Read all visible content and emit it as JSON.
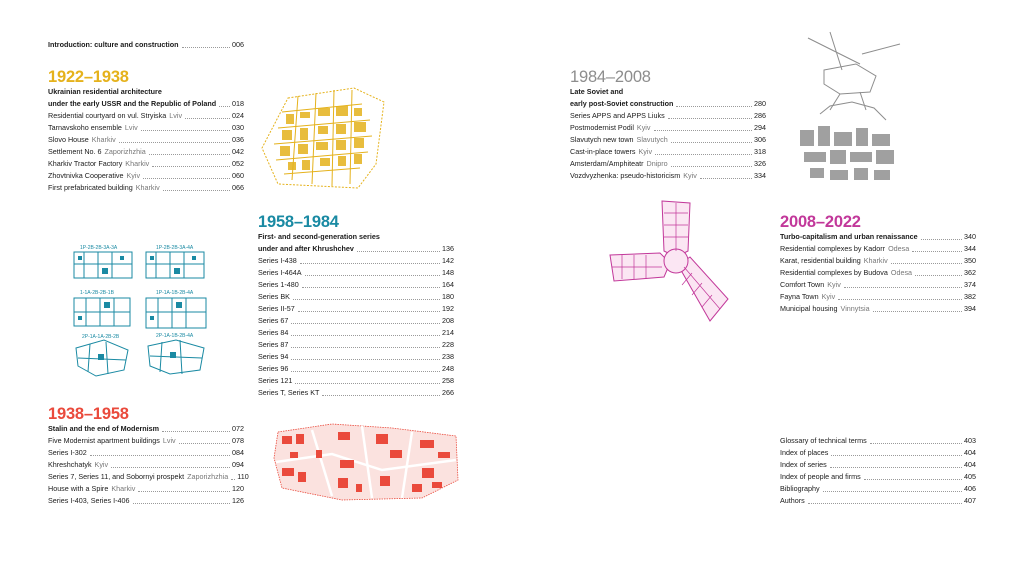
{
  "colors": {
    "s1922": "#e5b21c",
    "s1938": "#ea4a3c",
    "s1958": "#1a8aa3",
    "s1984": "#8d8d8d",
    "s2008": "#c2389a"
  },
  "intro": {
    "title": "Introduction: culture and construction",
    "page": "006"
  },
  "sec1922": {
    "title": "1922–1938",
    "head1": "Ukrainian residential architecture",
    "head2": "under the early USSR and the Republic of Poland",
    "head_page": "018",
    "items": [
      {
        "t": "Residential courtyard on vul. Stryiska",
        "c": "Lviv",
        "p": "024"
      },
      {
        "t": "Tarnavskoho ensemble",
        "c": "Lviv",
        "p": "030"
      },
      {
        "t": "Slovo House",
        "c": "Kharkiv",
        "p": "036"
      },
      {
        "t": "Settlement No. 6",
        "c": "Zaporizhzhia",
        "p": "042"
      },
      {
        "t": "Kharkiv Tractor Factory",
        "c": "Kharkiv",
        "p": "052"
      },
      {
        "t": "Zhovtnivka Cooperative",
        "c": "Kyiv",
        "p": "060"
      },
      {
        "t": "First prefabricated building",
        "c": "Kharkiv",
        "p": "066"
      }
    ]
  },
  "sec1958": {
    "title": "1958–1984",
    "head1": "First- and second-generation series",
    "head2": "under and after Khrushchev",
    "head_page": "136",
    "items": [
      {
        "t": "Series I-438",
        "p": "142"
      },
      {
        "t": "Series I-464A",
        "p": "148"
      },
      {
        "t": "Series 1-480",
        "p": "164"
      },
      {
        "t": "Series BK",
        "p": "180"
      },
      {
        "t": "Series II-57",
        "p": "192"
      },
      {
        "t": "Series 67",
        "p": "208"
      },
      {
        "t": "Series 84",
        "p": "214"
      },
      {
        "t": "Series 87",
        "p": "228"
      },
      {
        "t": "Series 94",
        "p": "238"
      },
      {
        "t": "Series 96",
        "p": "248"
      },
      {
        "t": "Series 121",
        "p": "258"
      },
      {
        "t": "Series T, Series KT",
        "p": "266"
      }
    ]
  },
  "sec1938": {
    "title": "1938–1958",
    "head1": "Stalin and the end of Modernism",
    "head_page": "072",
    "items": [
      {
        "t": "Five Modernist apartment buildings",
        "c": "Lviv",
        "p": "078"
      },
      {
        "t": "Series I-302",
        "p": "084"
      },
      {
        "t": "Khreshchatyk",
        "c": "Kyiv",
        "p": "094"
      },
      {
        "t": "Series 7, Series 11, and Sobornyi prospekt",
        "c": "Zaporizhzhia",
        "p": "110"
      },
      {
        "t": "House with a Spire",
        "c": "Kharkiv",
        "p": "120"
      },
      {
        "t": "Series I-403, Series I-406",
        "p": "126"
      }
    ]
  },
  "sec1984": {
    "title": "1984–2008",
    "head1": "Late Soviet and",
    "head2": "early post-Soviet construction",
    "head_page": "280",
    "items": [
      {
        "t": "Series APPS and APPS Liuks",
        "p": "286"
      },
      {
        "t": "Postmodernist Podil",
        "c": "Kyiv",
        "p": "294"
      },
      {
        "t": "Slavutych new town",
        "c": "Slavutych",
        "p": "306"
      },
      {
        "t": "Cast-in-place towers",
        "c": "Kyiv",
        "p": "318"
      },
      {
        "t": "Amsterdam/Amphiteatr",
        "c": "Dnipro",
        "p": "326"
      },
      {
        "t": "Vozdvyzhenka: pseudo-historicism",
        "c": "Kyiv",
        "p": "334"
      }
    ]
  },
  "sec2008": {
    "title": "2008–2022",
    "head1": "Turbo-capitalism and urban renaissance",
    "head_page": "340",
    "items": [
      {
        "t": "Residential complexes by Kadorr",
        "c": "Odesa",
        "p": "344"
      },
      {
        "t": "Karat, residential building",
        "c": "Kharkiv",
        "p": "350"
      },
      {
        "t": "Residential complexes by Budova",
        "c": "Odesa",
        "p": "362"
      },
      {
        "t": "Comfort Town",
        "c": "Kyiv",
        "p": "374"
      },
      {
        "t": "Fayna Town",
        "c": "Kyiv",
        "p": "382"
      },
      {
        "t": "Municipal housing",
        "c": "Vinnytsia",
        "p": "394"
      }
    ]
  },
  "back": {
    "items": [
      {
        "t": "Glossary of technical terms",
        "p": "403"
      },
      {
        "t": "Index of places",
        "p": "404"
      },
      {
        "t": "Index of series",
        "p": "404"
      },
      {
        "t": "Index of people and firms",
        "p": "405"
      },
      {
        "t": "Bibliography",
        "p": "406"
      },
      {
        "t": "Authors",
        "p": "407"
      }
    ]
  },
  "plan_labels": [
    "1P-2B-2B-3A-3A",
    "1P-2B-2B-3A-4A",
    "1-1A-2B-2B-1B",
    "1P-1A-1B-2B-4A",
    "2P-1A-1A-2B-2B",
    "2P-1A-1B-2B-4A"
  ]
}
